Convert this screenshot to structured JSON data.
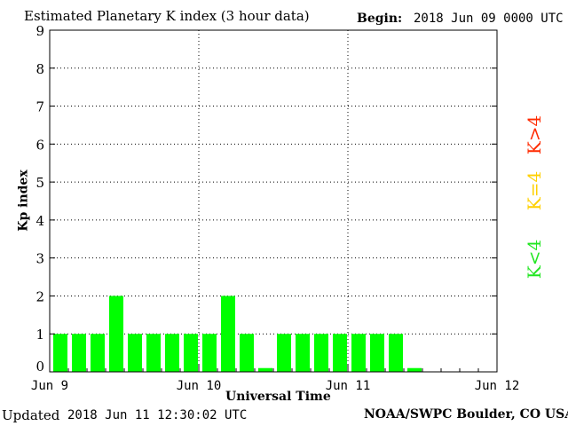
{
  "header": {
    "title": "Estimated Planetary K index (3 hour data)",
    "begin_label": "Begin:",
    "begin_value": "2018 Jun 09 0000 UTC"
  },
  "footer": {
    "updated_label": "Updated",
    "updated_value": "2018 Jun 11 12:30:02 UTC",
    "credit": "NOAA/SWPC Boulder, CO USA"
  },
  "legend": {
    "k_gt4": {
      "label": "K>4",
      "color": "#ff2a00"
    },
    "k_eq4": {
      "label": "K=4",
      "color": "#ffd000"
    },
    "k_lt4": {
      "label": "K<4",
      "color": "#22e622"
    }
  },
  "chart_data": {
    "type": "bar",
    "xlabel": "Universal Time",
    "ylabel": "Kp index",
    "ylim": [
      0,
      9
    ],
    "y_ticks": [
      0,
      1,
      2,
      3,
      4,
      5,
      6,
      7,
      8,
      9
    ],
    "x_ticks": [
      "Jun 9",
      "Jun 10",
      "Jun 11",
      "Jun 12"
    ],
    "grid": true,
    "bar_color": "#00ff00",
    "values": [
      1,
      1,
      1,
      2,
      1,
      1,
      1,
      1,
      1,
      2,
      1,
      0.1,
      1,
      1,
      1,
      1,
      1,
      1,
      1,
      0.1
    ]
  }
}
